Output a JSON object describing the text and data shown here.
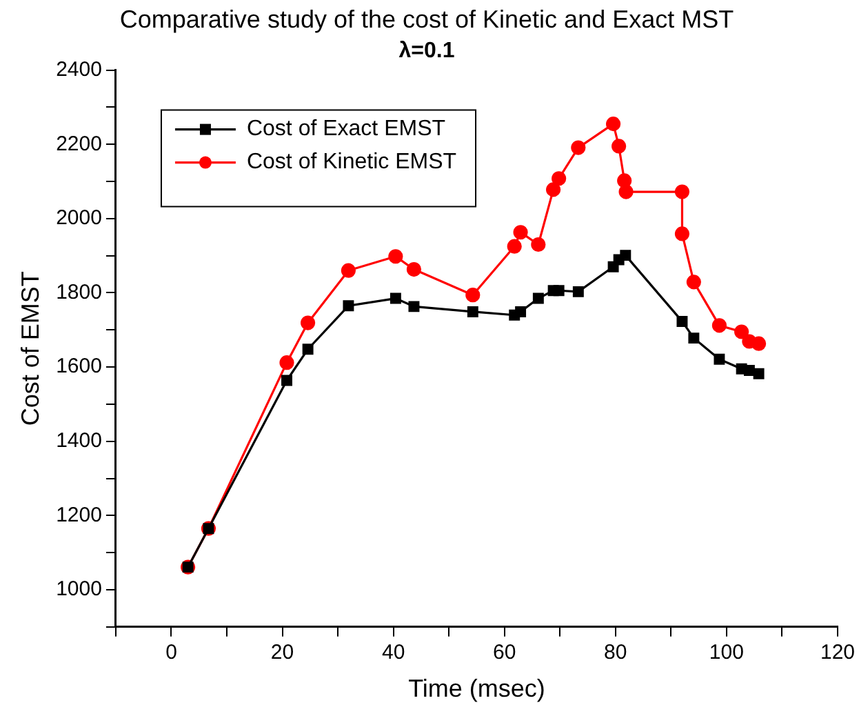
{
  "chart_data": {
    "type": "line",
    "title": "Comparative study of the cost of Kinetic and Exact MST",
    "subtitle": "λ=0.1",
    "xlabel": "Time (msec)",
    "ylabel": "Cost of EMST",
    "xlim": [
      -10,
      120
    ],
    "xticks": [
      {
        "value": -10,
        "label": null
      },
      0,
      {
        "value": 10,
        "label": null
      },
      20,
      {
        "value": 30,
        "label": null
      },
      40,
      {
        "value": 50,
        "label": null
      },
      60,
      {
        "value": 70,
        "label": null
      },
      80,
      {
        "value": 90,
        "label": null
      },
      100,
      {
        "value": 110,
        "label": null
      },
      120
    ],
    "ylim": [
      900,
      2400
    ],
    "yticks": [
      {
        "value": 900,
        "label": null
      },
      1000,
      {
        "value": 1100,
        "label": null
      },
      1200,
      {
        "value": 1300,
        "label": null
      },
      1400,
      {
        "value": 1500,
        "label": null
      },
      1600,
      {
        "value": 1700,
        "label": null
      },
      1800,
      {
        "value": 1900,
        "label": null
      },
      2000,
      {
        "value": 2100,
        "label": null
      },
      2200,
      {
        "value": 2300,
        "label": null
      },
      2400
    ],
    "legend": "top left",
    "grid": false,
    "series": [
      {
        "name": "Cost of Exact EMST",
        "color": "#000000",
        "marker": "square",
        "x": [
          3,
          6.7,
          20.8,
          24.6,
          31.9,
          40.4,
          43.7,
          54.3,
          61.8,
          62.9,
          66.1,
          68.8,
          69.8,
          73.3,
          79.6,
          80.6,
          81.8,
          92,
          94.1,
          98.7,
          102.7,
          104.1,
          105.8
        ],
        "values": [
          1061,
          1165,
          1564,
          1648,
          1765,
          1785,
          1763,
          1749,
          1740,
          1749,
          1785,
          1806,
          1806,
          1803,
          1870,
          1889,
          1901,
          1723,
          1678,
          1621,
          1595,
          1591,
          1582
        ]
      },
      {
        "name": "Cost of Kinetic EMST",
        "color": "#ff0000",
        "marker": "circle",
        "x": [
          3,
          6.7,
          20.8,
          24.6,
          31.9,
          40.4,
          43.7,
          54.3,
          61.8,
          62.9,
          66.1,
          68.8,
          69.8,
          73.3,
          79.6,
          80.6,
          81.6,
          81.9,
          92,
          92,
          94.1,
          98.7,
          102.7,
          104.1,
          105.8
        ],
        "values": [
          1061,
          1165,
          1612,
          1719,
          1860,
          1898,
          1863,
          1794,
          1925,
          1963,
          1930,
          2078,
          2108,
          2191,
          2255,
          2195,
          2102,
          2072,
          2072,
          1959,
          1829,
          1712,
          1695,
          1669,
          1663
        ]
      }
    ]
  }
}
